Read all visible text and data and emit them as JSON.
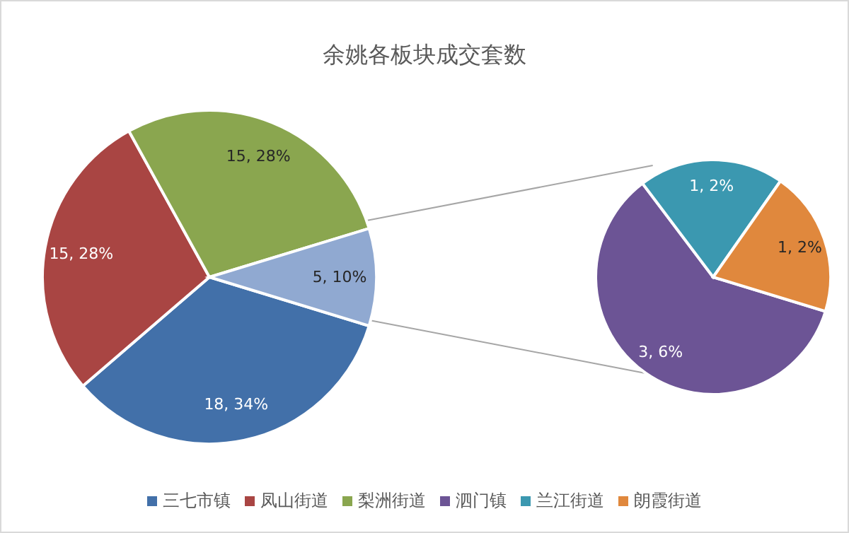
{
  "chart_data": [
    {
      "type": "pie",
      "title": "余姚各板块成交套数",
      "categories": [
        "三七市镇",
        "凤山街道",
        "梨洲街道",
        null
      ],
      "values": [
        18,
        15,
        15,
        5
      ],
      "colors": [
        "#4270a9",
        "#a94543",
        "#8aa64f",
        "#90a9d1"
      ],
      "value_labels": [
        "18, 34%",
        "15, 28%",
        "15, 28%",
        "5, 10%"
      ],
      "legend": "bottom"
    },
    {
      "type": "pie",
      "categories": [
        "泗门镇",
        "兰江街道",
        "朗霞街道"
      ],
      "values": [
        3,
        1,
        1
      ],
      "colors": [
        "#6c5495",
        "#3b98b0",
        "#e0883d"
      ],
      "value_labels": [
        "3, 6%",
        "1, 2%",
        "1, 2%"
      ],
      "legend": "bottom"
    }
  ]
}
